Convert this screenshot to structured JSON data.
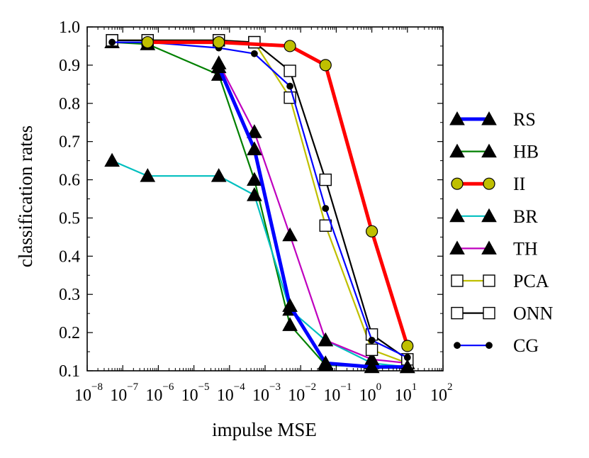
{
  "chart_data": {
    "type": "line",
    "title": "",
    "xlabel": "impulse MSE",
    "ylabel": "classification rates",
    "xscale": "log",
    "xlim_exponents": [
      -8,
      2
    ],
    "x_tick_exponents": [
      -8,
      -7,
      -6,
      -5,
      -4,
      -3,
      -2,
      -1,
      0,
      1,
      2
    ],
    "x_tick_base": "10",
    "ylim": [
      0.1,
      1.0
    ],
    "y_ticks": [
      "0.1",
      "0.2",
      "0.3",
      "0.4",
      "0.5",
      "0.6",
      "0.7",
      "0.8",
      "0.9",
      "1.0"
    ],
    "legend_position": "right, outside plot",
    "series": [
      {
        "name": "RS",
        "color": "#0000ff",
        "marker": "triangle",
        "marker_fill": "#000000",
        "line_weight": "thick",
        "x": [
          5e-05,
          0.0005,
          0.005,
          0.05,
          1,
          10
        ],
        "y": [
          0.895,
          0.68,
          0.27,
          0.12,
          0.11,
          0.11
        ]
      },
      {
        "name": "HB",
        "color": "#008000",
        "marker": "triangle",
        "marker_fill": "#000000",
        "line_weight": "normal",
        "x": [
          5e-08,
          5e-07,
          5e-05,
          0.0005,
          0.005,
          0.05,
          1,
          10
        ],
        "y": [
          0.96,
          0.955,
          0.875,
          0.6,
          0.22,
          0.115,
          0.11,
          0.11
        ]
      },
      {
        "name": "II",
        "color": "#ff0000",
        "marker": "circle",
        "marker_fill": "#bfbf00",
        "line_weight": "thick",
        "x": [
          5e-07,
          5e-05,
          0.005,
          0.05,
          1,
          10
        ],
        "y": [
          0.96,
          0.96,
          0.95,
          0.9,
          0.465,
          0.165
        ]
      },
      {
        "name": "BR",
        "color": "#00bfbf",
        "marker": "triangle",
        "marker_fill": "#000000",
        "line_weight": "normal",
        "x": [
          5e-08,
          5e-07,
          5e-05,
          0.0005,
          0.005,
          0.05,
          1,
          10
        ],
        "y": [
          0.65,
          0.61,
          0.61,
          0.56,
          0.26,
          0.18,
          0.12,
          0.11
        ]
      },
      {
        "name": "TH",
        "color": "#bf00bf",
        "marker": "triangle",
        "marker_fill": "#000000",
        "line_weight": "normal",
        "x": [
          5e-05,
          0.0005,
          0.005,
          0.05,
          1,
          10
        ],
        "y": [
          0.905,
          0.725,
          0.455,
          0.18,
          0.13,
          0.12
        ]
      },
      {
        "name": "PCA",
        "color": "#bfbf00",
        "marker": "square",
        "marker_fill": "#ffffff",
        "line_weight": "normal",
        "x": [
          5e-08,
          5e-07,
          5e-05,
          0.0005,
          0.005,
          0.05,
          1,
          10
        ],
        "y": [
          0.965,
          0.965,
          0.965,
          0.96,
          0.815,
          0.48,
          0.155,
          0.12
        ]
      },
      {
        "name": "ONN",
        "color": "#000000",
        "marker": "square",
        "marker_fill": "#ffffff",
        "line_weight": "normal",
        "x": [
          5e-08,
          5e-07,
          5e-05,
          0.0005,
          0.005,
          0.05,
          1,
          10
        ],
        "y": [
          0.965,
          0.965,
          0.965,
          0.96,
          0.885,
          0.6,
          0.195,
          0.13
        ]
      },
      {
        "name": "CG",
        "color": "#0000ff",
        "marker": "dot",
        "marker_fill": "#000000",
        "line_weight": "normal",
        "x": [
          5e-08,
          5e-07,
          5e-05,
          0.0005,
          0.005,
          0.05,
          1,
          10
        ],
        "y": [
          0.96,
          0.96,
          0.945,
          0.93,
          0.845,
          0.525,
          0.18,
          0.135
        ]
      }
    ]
  }
}
